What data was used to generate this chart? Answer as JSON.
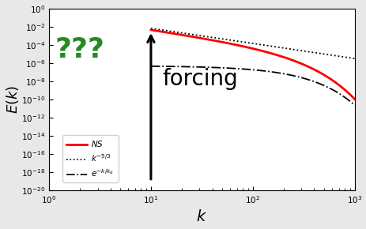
{
  "xlabel": "$k$",
  "ylabel": "$E(k)$",
  "k_force": 10,
  "k_d": 100,
  "C_ns": 0.005,
  "C_kolmogorov": 0.005,
  "C_exp": 0.005,
  "bg_color": "#ffffff",
  "figure_bg": "#e8e8e8",
  "ns_color": "red",
  "kolmogorov_color": "black",
  "exp_color": "black",
  "arrow_color": "black",
  "question_color": "#228B22",
  "forcing_color": "black",
  "forcing_text": "forcing",
  "question_text": "???",
  "forcing_fontsize": 20,
  "question_fontsize": 26,
  "xlabel_fontsize": 14,
  "ylabel_fontsize": 13
}
